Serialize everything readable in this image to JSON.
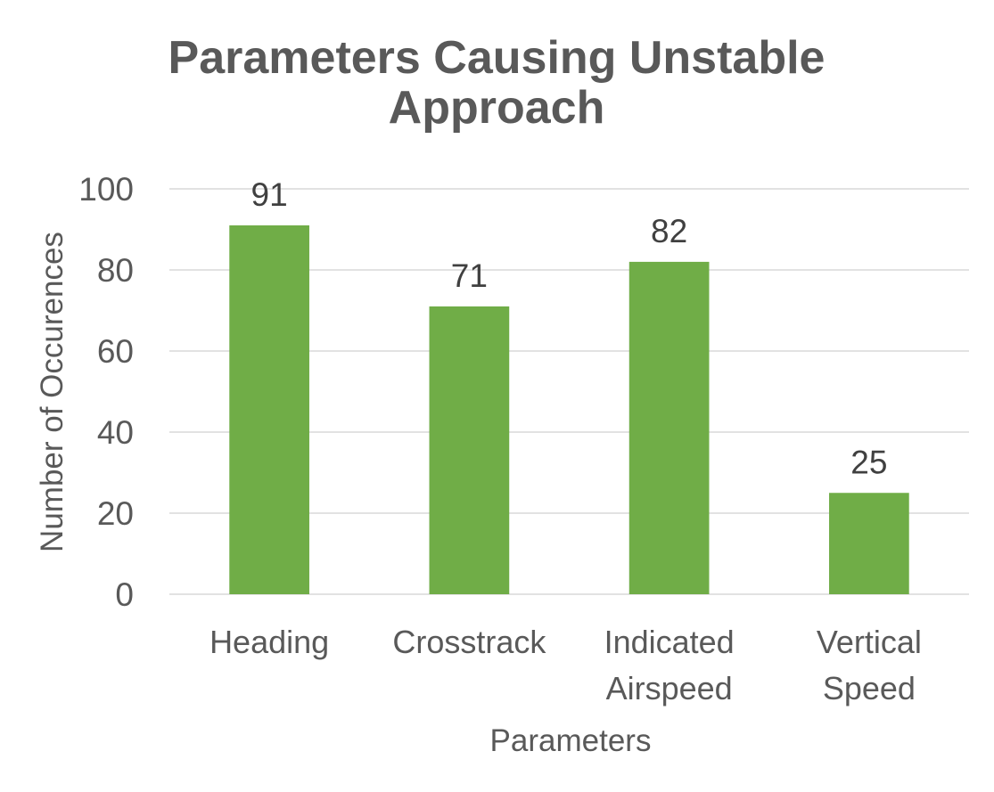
{
  "chart_data": {
    "type": "bar",
    "title": [
      "Parameters Causing Unstable",
      "Approach"
    ],
    "categories": [
      [
        "Heading"
      ],
      [
        "Crosstrack"
      ],
      [
        "Indicated",
        "Airspeed"
      ],
      [
        "Vertical",
        "Speed"
      ]
    ],
    "values": [
      91,
      71,
      82,
      25
    ],
    "data_labels": [
      "91",
      "71",
      "82",
      "25"
    ],
    "xlabel": "Parameters",
    "ylabel": "Number of Occurences",
    "ylim": [
      0,
      100
    ],
    "yticks": [
      0,
      20,
      40,
      60,
      80,
      100
    ],
    "grid": true,
    "legend": "none",
    "bar_color": "#70ad47"
  }
}
